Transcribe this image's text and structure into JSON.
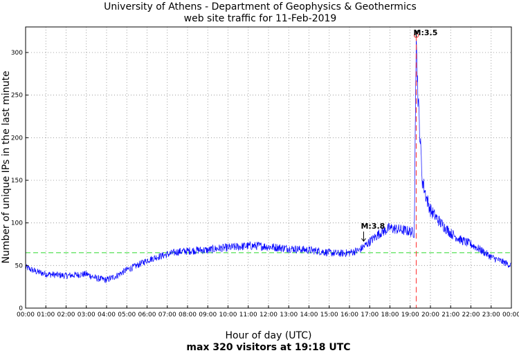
{
  "chart_data": {
    "type": "line",
    "title": "University of Athens - Department of Geophysics & Geothermics",
    "subtitle": "web site traffic for 11-Feb-2019",
    "xlabel": "Hour of day (UTC)",
    "xlabel_sub": "max 320 visitors at 19:18 UTC",
    "ylabel": "Number of unique IPs in the last minute",
    "xlim": [
      0,
      24
    ],
    "ylim": [
      0,
      330
    ],
    "x_ticks": [
      "00:00",
      "01:00",
      "02:00",
      "03:00",
      "04:00",
      "05:00",
      "06:00",
      "07:00",
      "08:00",
      "09:00",
      "10:00",
      "11:00",
      "12:00",
      "13:00",
      "14:00",
      "15:00",
      "16:00",
      "17:00",
      "18:00",
      "19:00",
      "20:00",
      "21:00",
      "22:00",
      "23:00",
      "00:00"
    ],
    "y_ticks": [
      0,
      50,
      100,
      150,
      200,
      250,
      300
    ],
    "grid": true,
    "series": [
      {
        "color": "#0000ff",
        "hours": [
          0,
          0.5,
          1,
          1.5,
          2,
          2.5,
          3,
          3.5,
          4,
          4.5,
          5,
          5.5,
          6,
          6.5,
          7,
          7.5,
          8,
          8.5,
          9,
          9.5,
          10,
          10.5,
          11,
          11.5,
          12,
          12.5,
          13,
          13.5,
          14,
          14.5,
          15,
          15.5,
          16,
          16.5,
          17,
          17.5,
          18,
          18.5,
          19,
          19.2,
          19.3,
          19.4,
          19.6,
          19.8,
          20,
          20.5,
          21,
          21.5,
          22,
          22.5,
          23,
          23.5,
          24
        ],
        "values": [
          48,
          43,
          40,
          39,
          38,
          39,
          40,
          35,
          33,
          38,
          45,
          50,
          56,
          60,
          63,
          66,
          67,
          68,
          68,
          70,
          71,
          72,
          73,
          73,
          72,
          71,
          70,
          69,
          68,
          67,
          65,
          64,
          65,
          68,
          78,
          88,
          94,
          92,
          90,
          88,
          320,
          240,
          150,
          130,
          115,
          100,
          88,
          80,
          75,
          68,
          60,
          55,
          50
        ]
      }
    ],
    "reference_line": {
      "value": 65,
      "color": "#44dd44"
    },
    "max_marker": {
      "hour": 19.3,
      "value": 320,
      "color": "#ff4444"
    },
    "annotations": [
      {
        "label": "M:3.5",
        "hour": 19.3
      },
      {
        "label": "M:3.8",
        "hour": 16.7
      }
    ]
  }
}
